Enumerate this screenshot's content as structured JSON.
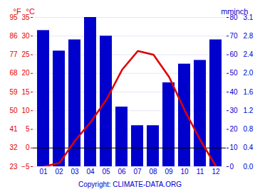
{
  "chart_data": {
    "type": "bar",
    "categories": [
      "01",
      "02",
      "03",
      "04",
      "05",
      "06",
      "07",
      "08",
      "09",
      "10",
      "11",
      "12"
    ],
    "series": [
      {
        "type": "bar",
        "axis": "y2",
        "color": "#0000cc",
        "values": [
          73,
          62,
          68,
          80,
          70,
          32,
          22,
          22,
          45,
          55,
          57,
          68
        ]
      },
      {
        "type": "line",
        "color": "#dd0000",
        "values": [
          -5,
          -4,
          2,
          7,
          13,
          21,
          26,
          25,
          19,
          10,
          2,
          -5
        ]
      }
    ],
    "ylabel": "°C",
    "ylim": [
      -5,
      35
    ],
    "yticks": [
      -5,
      0,
      5,
      10,
      15,
      20,
      25,
      30,
      35
    ],
    "y_fahrenheit_label": "°F",
    "y_fahrenheit_ticks": [
      {
        "value": -5,
        "label": "23"
      },
      {
        "value": 0,
        "label": "32"
      },
      {
        "value": 5,
        "label": "41"
      },
      {
        "value": 10,
        "label": "50"
      },
      {
        "value": 15,
        "label": "59"
      },
      {
        "value": 20,
        "label": "68"
      },
      {
        "value": 25,
        "label": "77"
      },
      {
        "value": 30,
        "label": "86"
      },
      {
        "value": 35,
        "label": "95"
      }
    ],
    "y2label": "mm",
    "y2lim": [
      0,
      80
    ],
    "y2ticks": [
      0,
      10,
      20,
      30,
      40,
      50,
      60,
      70,
      80
    ],
    "y2_inch_label": "inch",
    "y2_inch_ticks": [
      {
        "value": 0,
        "label": "0.0"
      },
      {
        "value": 10,
        "label": "0.4"
      },
      {
        "value": 20,
        "label": "0.8"
      },
      {
        "value": 30,
        "label": "1.2"
      },
      {
        "value": 40,
        "label": "1.6"
      },
      {
        "value": 50,
        "label": "2.0"
      },
      {
        "value": 60,
        "label": "2.4"
      },
      {
        "value": 70,
        "label": "2.8"
      },
      {
        "value": 80,
        "label": "3.1"
      }
    ],
    "grid": true,
    "reference_line": {
      "value": 0,
      "color": "#000000"
    },
    "caption": "Copyright: CLIMATE-DATA.ORG"
  }
}
